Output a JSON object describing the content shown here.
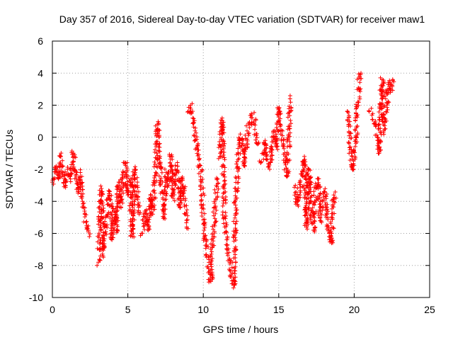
{
  "chart_data": {
    "type": "scatter",
    "title": "Day 357 of 2016, Sidereal Day-to-day VTEC variation (SDTVAR) for receiver maw1",
    "xlabel": "GPS time / hours",
    "ylabel": "SDTVAR / TECUs",
    "xlim": [
      0,
      25
    ],
    "ylim": [
      -10,
      6
    ],
    "xticks": [
      0,
      5,
      10,
      15,
      20,
      25
    ],
    "yticks": [
      -10,
      -8,
      -6,
      -4,
      -2,
      0,
      2,
      4,
      6
    ],
    "grid": true,
    "marker": "+",
    "color": "#ff0000",
    "series": [
      {
        "name": "maw1",
        "segments": [
          {
            "x": [
              0.0,
              0.25,
              0.4,
              0.55,
              0.7,
              0.85,
              1.0,
              1.2,
              1.4,
              1.55,
              1.7,
              1.85,
              2.0,
              2.15,
              2.3,
              2.45
            ],
            "y": [
              -2.8,
              -1.8,
              -2.6,
              -1.2,
              -2.2,
              -3.0,
              -2.0,
              -2.6,
              -1.0,
              -2.4,
              -3.4,
              -2.2,
              -4.0,
              -4.8,
              -5.6,
              -6.2
            ]
          },
          {
            "x": [
              3.05,
              3.15,
              3.25,
              3.35,
              3.5,
              3.65,
              3.8,
              3.95,
              4.1,
              4.25,
              4.4,
              4.55,
              4.7,
              4.85,
              5.0,
              5.15,
              5.3,
              5.45,
              5.6,
              5.75
            ],
            "y": [
              -7.8,
              -5.2,
              -3.2,
              -7.4,
              -6.0,
              -4.2,
              -3.4,
              -6.4,
              -4.6,
              -5.8,
              -2.8,
              -4.4,
              -2.2,
              -1.6,
              -3.6,
              -2.6,
              -6.2,
              -2.0,
              -3.4,
              -4.8
            ]
          },
          {
            "x": [
              5.9,
              6.05,
              6.2,
              6.35,
              6.5,
              6.65,
              6.8,
              6.95,
              7.1,
              7.25,
              7.4,
              7.55,
              7.7,
              7.85,
              8.0,
              8.15,
              8.3,
              8.45,
              8.6,
              8.75,
              8.9
            ],
            "y": [
              -6.0,
              -5.4,
              -4.6,
              -5.8,
              -3.6,
              -4.8,
              -2.8,
              0.8,
              -1.6,
              -3.4,
              -5.0,
              -2.2,
              -3.0,
              -1.2,
              -3.8,
              -2.4,
              -1.8,
              -4.4,
              -2.6,
              -3.2,
              -5.6
            ]
          },
          {
            "x": [
              9.0,
              9.15,
              9.3,
              9.45,
              9.6,
              9.75,
              9.9,
              10.05,
              10.2,
              10.35,
              10.5,
              10.65,
              10.8,
              10.95
            ],
            "y": [
              1.6,
              2.0,
              1.2,
              0.4,
              -0.6,
              -1.8,
              -2.8,
              -5.8,
              -6.8,
              -8.2,
              -9.0,
              -6.2,
              -4.4,
              -2.6
            ]
          },
          {
            "x": [
              11.1,
              11.25,
              11.4,
              11.55,
              11.7,
              11.85,
              12.0,
              12.15,
              12.3,
              12.45,
              12.6,
              12.75,
              12.9,
              13.05,
              13.2,
              13.35,
              13.5,
              13.65
            ],
            "y": [
              -1.2,
              1.2,
              -5.0,
              -6.4,
              -7.2,
              -8.6,
              -9.4,
              -3.8,
              -1.4,
              0.2,
              -0.8,
              -1.8,
              0.4,
              0.8,
              1.4,
              1.0,
              0.2,
              -0.4
            ]
          },
          {
            "x": [
              13.8,
              13.95,
              14.1,
              14.25,
              14.4,
              14.55,
              14.7,
              14.85,
              15.0,
              15.15,
              15.3,
              15.45,
              15.6,
              15.75
            ],
            "y": [
              -1.6,
              -1.0,
              -0.2,
              -1.4,
              -2.0,
              -0.8,
              0.4,
              -0.6,
              1.8,
              0.2,
              -0.4,
              -1.6,
              -2.4,
              2.4
            ]
          },
          {
            "x": [
              16.1,
              16.25,
              16.4,
              16.55,
              16.7,
              16.85,
              17.0,
              17.15,
              17.3,
              17.45,
              17.6,
              17.75,
              17.9,
              18.05,
              18.2,
              18.35,
              18.5,
              18.65,
              18.8
            ],
            "y": [
              -3.0,
              -4.2,
              -3.6,
              -2.4,
              -1.2,
              -5.6,
              -2.0,
              -4.6,
              -5.8,
              -3.2,
              -2.6,
              -5.2,
              -4.0,
              -3.4,
              -4.8,
              -6.0,
              -6.6,
              -3.6,
              -3.8
            ]
          },
          {
            "x": [
              19.55,
              19.65,
              19.75,
              19.85,
              19.95,
              20.05,
              20.15,
              20.25,
              20.35,
              20.45
            ],
            "y": [
              1.6,
              0.8,
              -0.6,
              -1.8,
              -2.0,
              -1.2,
              0.6,
              2.2,
              3.8,
              4.0
            ]
          },
          {
            "x": [
              21.0,
              21.4,
              21.55,
              21.65,
              21.75,
              21.85,
              21.95,
              22.1,
              22.25,
              22.4,
              22.55
            ],
            "y": [
              1.6,
              0.8,
              -0.2,
              -1.0,
              1.8,
              3.6,
              0.4,
              1.6,
              3.4,
              2.8,
              3.6
            ]
          }
        ]
      }
    ]
  }
}
